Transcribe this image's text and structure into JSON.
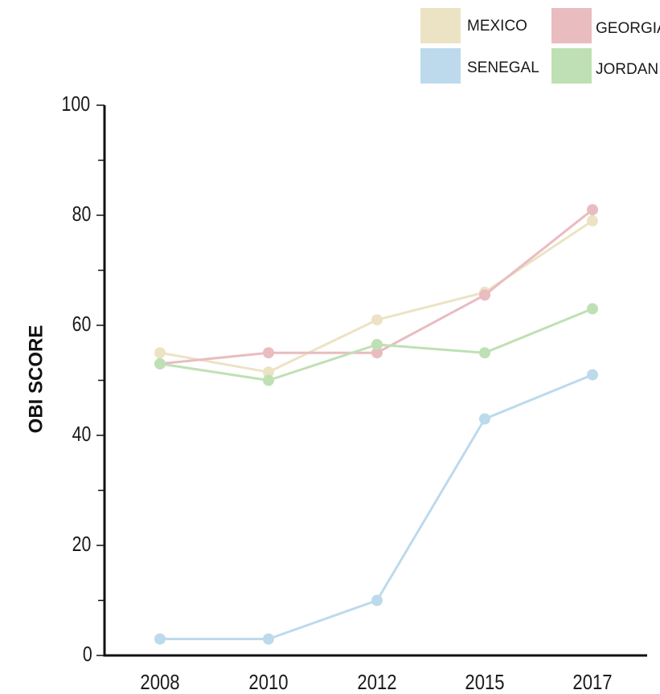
{
  "chart_data": {
    "type": "line",
    "categories": [
      "2008",
      "2010",
      "2012",
      "2015",
      "2017"
    ],
    "ylabel": "OBI SCORE",
    "xlabel": "",
    "ylim": [
      0,
      100
    ],
    "yticks": [
      0,
      20,
      40,
      60,
      80,
      100
    ],
    "y_minor_step": 10,
    "grid": false,
    "legend_position": "top-right",
    "series": [
      {
        "name": "MEXICO",
        "color": "#ece3c4",
        "values": [
          55,
          51.5,
          61,
          66,
          79
        ]
      },
      {
        "name": "GEORGIA",
        "color": "#e9bcc0",
        "values": [
          53,
          55,
          55,
          65.5,
          81
        ]
      },
      {
        "name": "SENEGAL",
        "color": "#bcdaec",
        "values": [
          3,
          3,
          10,
          43,
          51
        ]
      },
      {
        "name": "JORDAN",
        "color": "#bfe0b4",
        "values": [
          53,
          50,
          56.5,
          55,
          63
        ]
      }
    ]
  }
}
